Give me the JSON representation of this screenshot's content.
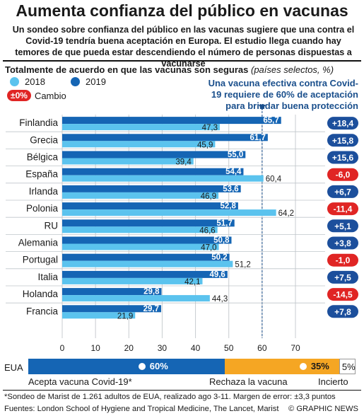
{
  "title": "Aumenta confianza del público en vacunas",
  "subtitle": "Un sondeo sobre confianza del público en las vacunas sugiere que una contra el Covid-19 tendría buena aceptación en Europa. El estudio llega cuando hay temores de que pueda estar descendiendo el número de personas dispuestas a vacunarse",
  "section_title": "Totalmente de acuerdo en que las vacunas son seguras",
  "section_note": "(países selectos, %)",
  "legend": {
    "y2018": "2018",
    "y2019": "2019",
    "change_badge": "±0%",
    "change_label": "Cambio"
  },
  "callout": "Una vacuna efectiva contra Covid-19 requiere de 60% de aceptación para brindar buena protección",
  "colors": {
    "c2018": "#5bc3ee",
    "c2019": "#1565b4",
    "pos": "#1c4f9c",
    "neg": "#e02524",
    "gray": "#9ea3a6",
    "orange": "#f5a623"
  },
  "chart_data": {
    "type": "bar",
    "categories": [
      "Finlandia",
      "Grecia",
      "Bélgica",
      "España",
      "Irlanda",
      "Polonia",
      "RU",
      "Alemania",
      "Portugal",
      "Italia",
      "Holanda",
      "Francia"
    ],
    "series": [
      {
        "name": "2018",
        "values": [
          47.3,
          45.9,
          39.4,
          60.4,
          46.9,
          64.2,
          46.6,
          47.0,
          51.2,
          42.1,
          44.3,
          21.9
        ]
      },
      {
        "name": "2019",
        "values": [
          65.7,
          61.7,
          55.0,
          54.4,
          53.6,
          52.8,
          51.7,
          50.8,
          50.2,
          49.6,
          29.8,
          29.7
        ]
      }
    ],
    "labels_2018": [
      "47,3",
      "45,9",
      "39,4",
      "60,4",
      "46,9",
      "64,2",
      "46,6",
      "47,0",
      "51,2",
      "42,1",
      "44,3",
      "21,9"
    ],
    "labels_2019": [
      "65,7",
      "61,7",
      "55,0",
      "54,4",
      "53,6",
      "52,8",
      "51,7",
      "50,8",
      "50,2",
      "49,6",
      "29,8",
      "29,7"
    ],
    "change": [
      "+18,4",
      "+15,8",
      "+15,6",
      "-6,0",
      "+6,7",
      "-11,4",
      "+5,1",
      "+3,8",
      "-1,0",
      "+7,5",
      "-14,5",
      "+7,8"
    ],
    "xlim": [
      0,
      70
    ],
    "xticks": [
      "0",
      "10",
      "20",
      "30",
      "40",
      "50",
      "60",
      "70"
    ],
    "reference_line": 60
  },
  "eua": {
    "label": "EUA",
    "accept": 60,
    "reject": 35,
    "unsure": 5,
    "accept_label": "60%",
    "reject_label": "35%",
    "unsure_label": "5%",
    "accept_caption": "Acepta vacuna Covid-19*",
    "reject_caption": "Rechaza la vacuna",
    "unsure_caption": "Incierto"
  },
  "footnote": "*Sondeo de Marist de 1.261 adultos de EUA, realizado ago 3-11. Margen de error: ±3,3 puntos",
  "sources": "Fuentes: London School of Hygiene and Tropical Medicine, The Lancet, Marist",
  "credit": "© GRAPHIC NEWS"
}
